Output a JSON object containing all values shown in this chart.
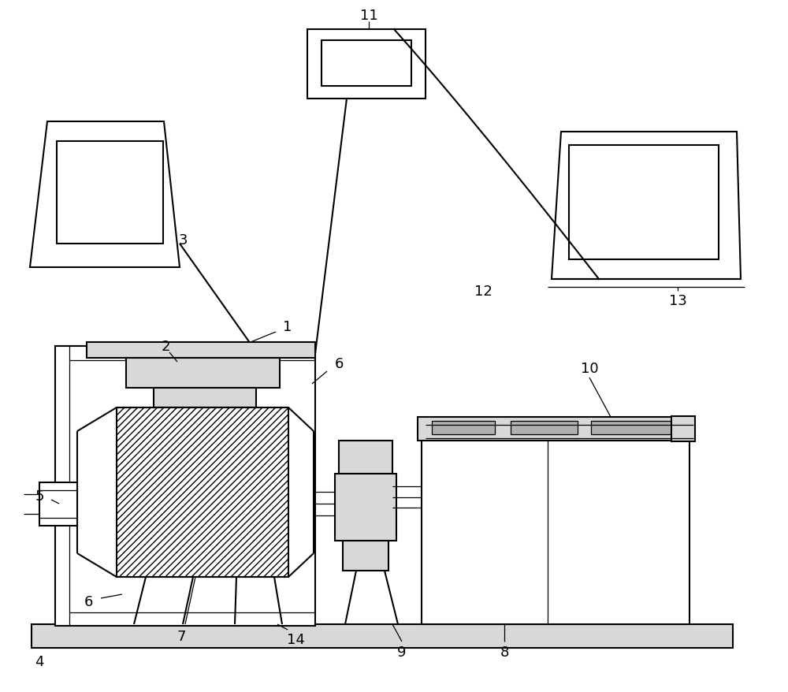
{
  "bg_color": "#ffffff",
  "line_color": "#000000",
  "lw": 1.5,
  "tlw": 0.9,
  "fs": 13,
  "gray_fill": "#d8d8d8",
  "white_fill": "#ffffff"
}
